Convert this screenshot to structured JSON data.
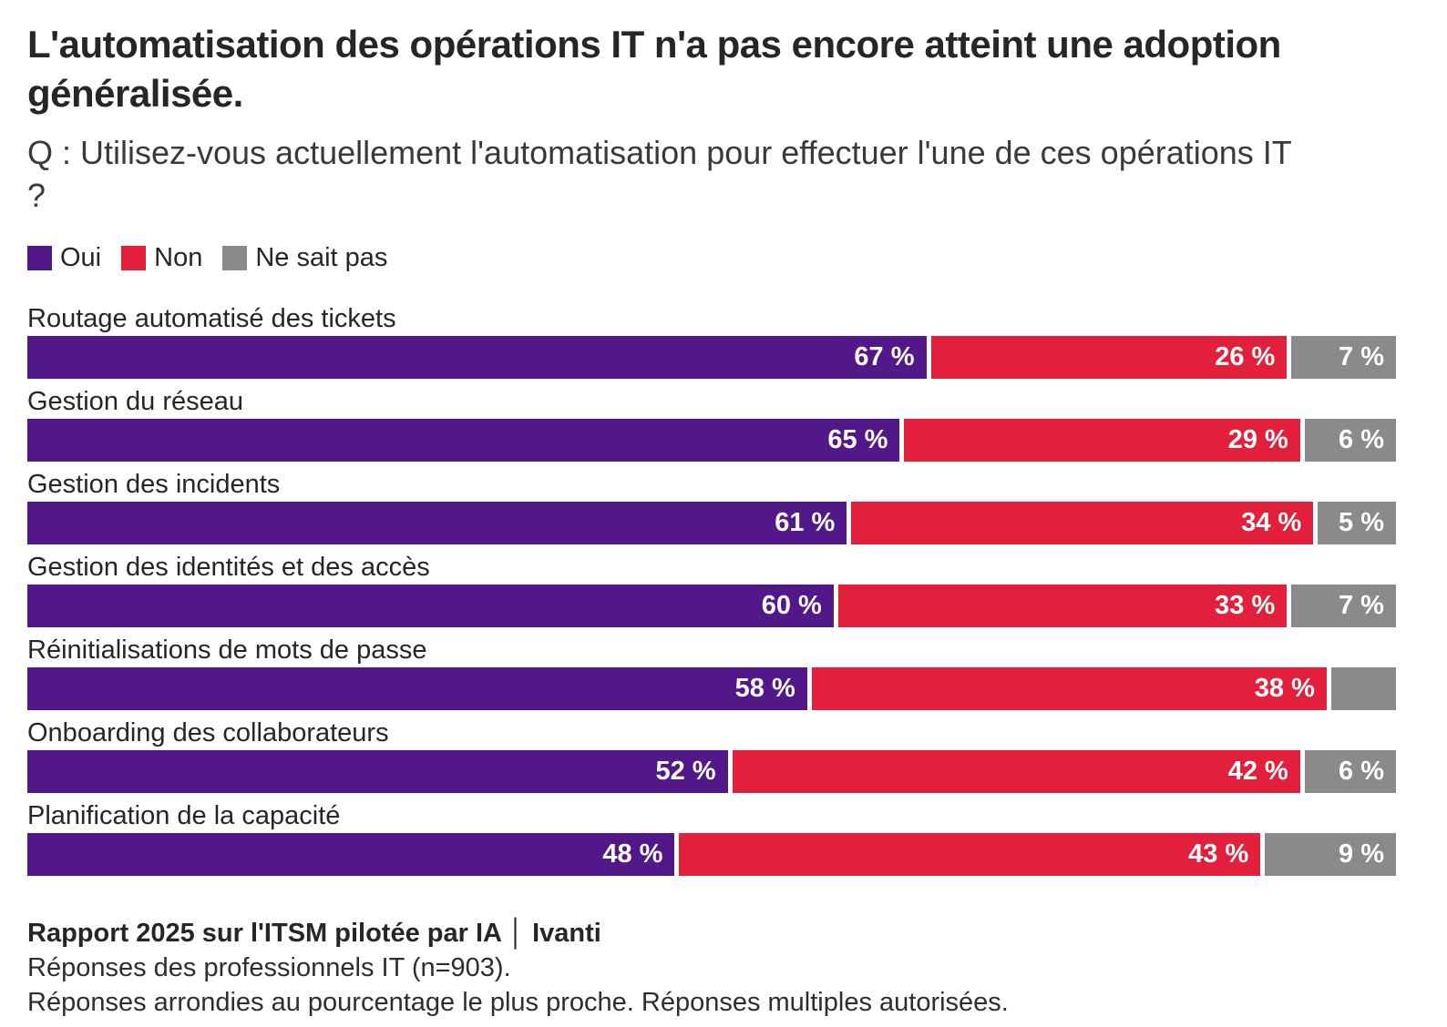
{
  "title": "L'automatisation des opérations IT n'a pas encore atteint une adoption généralisée.",
  "subtitle": "Q : Utilisez-vous actuellement l'automatisation pour effectuer l'une de ces opérations IT ?",
  "colors": {
    "oui": "#521789",
    "non": "#e2203c",
    "ne_sait_pas": "#8a8a8a",
    "heading_text": "#262626",
    "value_text": "#ffffff"
  },
  "legend": [
    {
      "label": "Oui",
      "color": "#521789"
    },
    {
      "label": "Non",
      "color": "#e2203c"
    },
    {
      "label": "Ne sait pas",
      "color": "#8a8a8a"
    }
  ],
  "chart_data": {
    "type": "bar",
    "orientation": "horizontal-stacked",
    "unit": "%",
    "axis_range": [
      0,
      100
    ],
    "grid": false,
    "legend_position": "top-left",
    "categories": [
      "Routage automatisé des tickets",
      "Gestion du réseau",
      "Gestion des incidents",
      "Gestion des identités et des accès",
      "Réinitialisations de mots de passe",
      "Onboarding des collaborateurs",
      "Planification de la capacité"
    ],
    "series": [
      {
        "name": "Oui",
        "color": "#521789",
        "values": [
          67,
          65,
          61,
          60,
          58,
          52,
          48
        ]
      },
      {
        "name": "Non",
        "color": "#e2203c",
        "values": [
          26,
          29,
          34,
          33,
          38,
          42,
          43
        ]
      },
      {
        "name": "Ne sait pas",
        "color": "#8a8a8a",
        "values": [
          7,
          6,
          5,
          7,
          4,
          6,
          9
        ]
      }
    ],
    "rows": [
      {
        "category": "Routage automatisé des tickets",
        "segments": [
          {
            "value": 67,
            "label": "67 %"
          },
          {
            "value": 26,
            "label": "26 %"
          },
          {
            "value": 7,
            "label": "7 %"
          }
        ]
      },
      {
        "category": "Gestion du réseau",
        "segments": [
          {
            "value": 65,
            "label": "65 %"
          },
          {
            "value": 29,
            "label": "29 %"
          },
          {
            "value": 6,
            "label": "6 %"
          }
        ]
      },
      {
        "category": "Gestion des incidents",
        "segments": [
          {
            "value": 61,
            "label": "61 %"
          },
          {
            "value": 34,
            "label": "34 %"
          },
          {
            "value": 5,
            "label": "5 %"
          }
        ]
      },
      {
        "category": "Gestion des identités et des accès",
        "segments": [
          {
            "value": 60,
            "label": "60 %"
          },
          {
            "value": 33,
            "label": "33 %"
          },
          {
            "value": 7,
            "label": "7 %"
          }
        ]
      },
      {
        "category": "Réinitialisations de mots de passe",
        "segments": [
          {
            "value": 58,
            "label": "58 %"
          },
          {
            "value": 38,
            "label": "38 %"
          },
          {
            "value": 4,
            "label": ""
          }
        ]
      },
      {
        "category": "Onboarding des collaborateurs",
        "segments": [
          {
            "value": 52,
            "label": "52 %"
          },
          {
            "value": 42,
            "label": "42 %"
          },
          {
            "value": 6,
            "label": "6 %"
          }
        ]
      },
      {
        "category": "Planification de la capacité",
        "segments": [
          {
            "value": 48,
            "label": "48 %"
          },
          {
            "value": 43,
            "label": "43 %"
          },
          {
            "value": 9,
            "label": "9 %"
          }
        ]
      }
    ]
  },
  "footer": {
    "source": "Rapport 2025 sur l'ITSM pilotée par IA │ Ivanti",
    "line2": "Réponses des professionnels IT (n=903).",
    "line3": "Réponses arrondies au pourcentage le plus proche. Réponses multiples autorisées."
  }
}
